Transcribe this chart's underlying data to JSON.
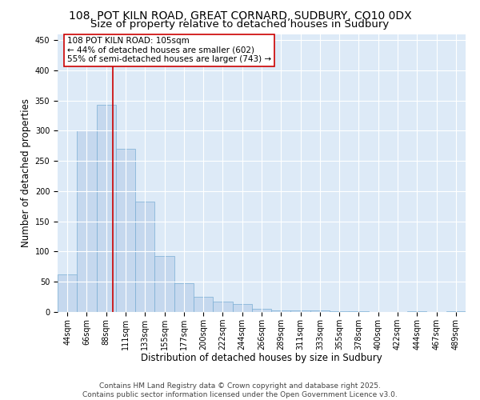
{
  "title_line1": "108, POT KILN ROAD, GREAT CORNARD, SUDBURY, CO10 0DX",
  "title_line2": "Size of property relative to detached houses in Sudbury",
  "xlabel": "Distribution of detached houses by size in Sudbury",
  "ylabel": "Number of detached properties",
  "bar_color": "#c5d8ee",
  "bar_edge_color": "#7aaed4",
  "background_color": "#ddeaf7",
  "grid_color": "#ffffff",
  "annotation_text": "108 POT KILN ROAD: 105sqm\n← 44% of detached houses are smaller (602)\n55% of semi-detached houses are larger (743) →",
  "vline_x": 2.35,
  "vline_color": "#cc0000",
  "categories": [
    "44sqm",
    "66sqm",
    "88sqm",
    "111sqm",
    "133sqm",
    "155sqm",
    "177sqm",
    "200sqm",
    "222sqm",
    "244sqm",
    "266sqm",
    "289sqm",
    "311sqm",
    "333sqm",
    "355sqm",
    "378sqm",
    "400sqm",
    "422sqm",
    "444sqm",
    "467sqm",
    "489sqm"
  ],
  "values": [
    62,
    300,
    343,
    270,
    183,
    93,
    47,
    25,
    17,
    13,
    5,
    3,
    2,
    2,
    1,
    1,
    0,
    0,
    1,
    0,
    1
  ],
  "ylim": [
    0,
    460
  ],
  "yticks": [
    0,
    50,
    100,
    150,
    200,
    250,
    300,
    350,
    400,
    450
  ],
  "footer": "Contains HM Land Registry data © Crown copyright and database right 2025.\nContains public sector information licensed under the Open Government Licence v3.0.",
  "title_fontsize": 10,
  "subtitle_fontsize": 9.5,
  "axis_label_fontsize": 8.5,
  "tick_fontsize": 7,
  "footer_fontsize": 6.5,
  "ann_fontsize": 7.5
}
